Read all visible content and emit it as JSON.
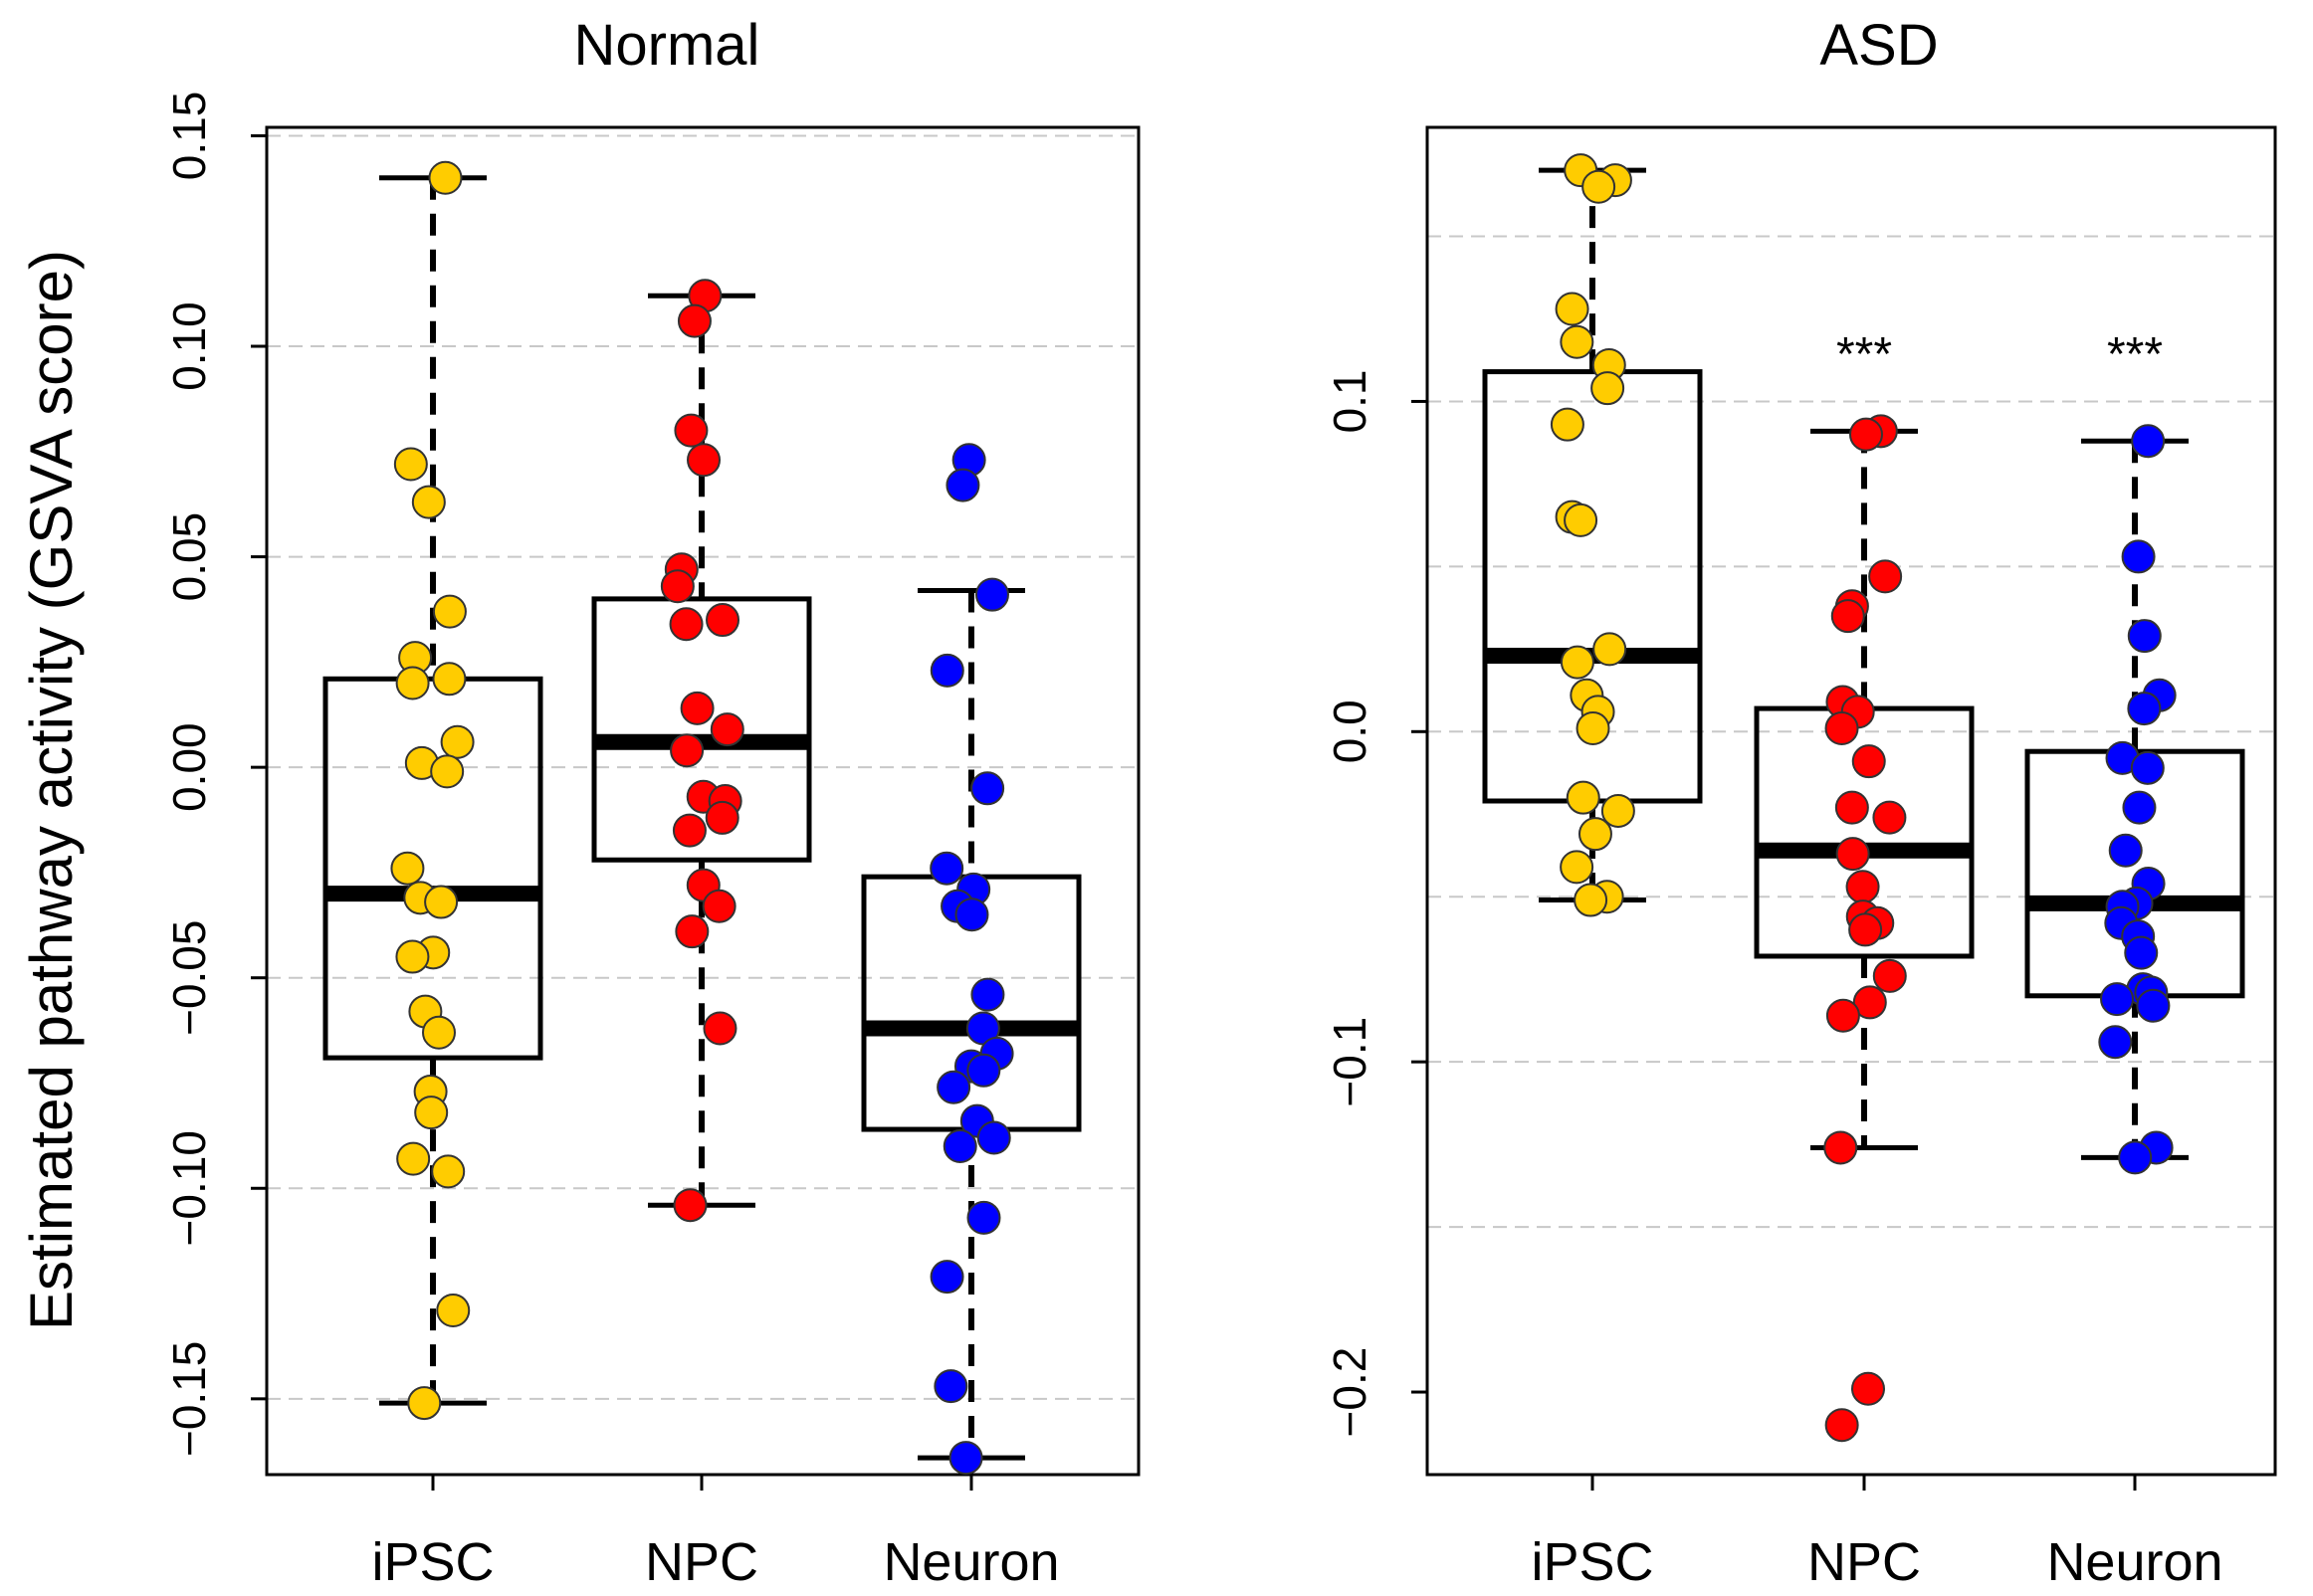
{
  "figure": {
    "ylabel": "Estimated pathway activity (GSVA score)"
  },
  "chart_data": [
    {
      "type": "boxplot",
      "title": "Normal",
      "xlabel": "",
      "ylabel": "Estimated pathway activity (GSVA score)",
      "ylim": [
        -0.168,
        0.152
      ],
      "yticks": [
        -0.15,
        -0.1,
        -0.05,
        0.0,
        0.05,
        0.1,
        0.15
      ],
      "ytick_labels": [
        "−0.15",
        "−0.10",
        "−0.05",
        "0.00",
        "0.05",
        "0.10",
        "0.15"
      ],
      "gridlines": [
        -0.15,
        -0.1,
        -0.05,
        0.0,
        0.05,
        0.1,
        0.15
      ],
      "categories": [
        "iPSC",
        "NPC",
        "Neuron"
      ],
      "colors": [
        "#FFCC00",
        "#FF0000",
        "#0000FF"
      ],
      "boxes": [
        {
          "whisker_low": -0.151,
          "q1": -0.069,
          "median": -0.03,
          "q3": 0.021,
          "whisker_high": 0.14
        },
        {
          "whisker_low": -0.104,
          "q1": -0.022,
          "median": 0.006,
          "q3": 0.04,
          "whisker_high": 0.112
        },
        {
          "whisker_low": -0.164,
          "q1": -0.086,
          "median": -0.062,
          "q3": -0.026,
          "whisker_high": 0.042
        }
      ],
      "points": [
        {
          "category": "iPSC",
          "values": [
            0.14,
            0.072,
            0.063,
            0.037,
            0.026,
            0.021,
            0.02,
            0.006,
            0.001,
            -0.001,
            -0.024,
            -0.031,
            -0.032,
            -0.044,
            -0.045,
            -0.058,
            -0.063,
            -0.077,
            -0.082,
            -0.093,
            -0.096,
            -0.129,
            -0.151
          ]
        },
        {
          "category": "NPC",
          "values": [
            0.112,
            0.106,
            0.08,
            0.073,
            0.047,
            0.043,
            0.035,
            0.034,
            0.014,
            0.009,
            0.004,
            -0.007,
            -0.008,
            -0.012,
            -0.015,
            -0.028,
            -0.033,
            -0.039,
            -0.062,
            -0.104
          ]
        },
        {
          "category": "Neuron",
          "values": [
            0.073,
            0.067,
            0.041,
            0.023,
            -0.005,
            -0.024,
            -0.029,
            -0.033,
            -0.035,
            -0.054,
            -0.062,
            -0.068,
            -0.071,
            -0.072,
            -0.076,
            -0.084,
            -0.088,
            -0.09,
            -0.107,
            -0.121,
            -0.147,
            -0.164
          ]
        }
      ],
      "significance": [
        "",
        "",
        ""
      ]
    },
    {
      "type": "boxplot",
      "title": "ASD",
      "xlabel": "",
      "ylabel": "",
      "ylim": [
        -0.225,
        0.183
      ],
      "yticks": [
        -0.2,
        -0.1,
        0.0,
        0.1
      ],
      "ytick_labels": [
        "−0.2",
        "−0.1",
        "0.0",
        "0.1"
      ],
      "gridlines": [
        -0.15,
        -0.1,
        -0.05,
        0.0,
        0.05,
        0.1,
        0.15
      ],
      "categories": [
        "iPSC",
        "NPC",
        "Neuron"
      ],
      "colors": [
        "#FFCC00",
        "#FF0000",
        "#0000FF"
      ],
      "boxes": [
        {
          "whisker_low": -0.051,
          "q1": -0.021,
          "median": 0.023,
          "q3": 0.109,
          "whisker_high": 0.17
        },
        {
          "whisker_low": -0.126,
          "q1": -0.068,
          "median": -0.036,
          "q3": 0.007,
          "whisker_high": 0.091
        },
        {
          "whisker_low": -0.129,
          "q1": -0.08,
          "median": -0.052,
          "q3": -0.006,
          "whisker_high": 0.088
        }
      ],
      "points": [
        {
          "category": "iPSC",
          "values": [
            0.17,
            0.167,
            0.165,
            0.128,
            0.118,
            0.111,
            0.104,
            0.093,
            0.065,
            0.064,
            0.025,
            0.021,
            0.011,
            0.006,
            0.001,
            -0.02,
            -0.024,
            -0.031,
            -0.041,
            -0.05,
            -0.051
          ]
        },
        {
          "category": "NPC",
          "values": [
            0.091,
            0.09,
            0.047,
            0.038,
            0.035,
            0.009,
            0.006,
            0.001,
            -0.009,
            -0.023,
            -0.026,
            -0.037,
            -0.047,
            -0.056,
            -0.058,
            -0.06,
            -0.074,
            -0.082,
            -0.086,
            -0.126,
            -0.199,
            -0.21
          ]
        },
        {
          "category": "Neuron",
          "values": [
            0.088,
            0.053,
            0.029,
            0.011,
            0.007,
            -0.008,
            -0.011,
            -0.023,
            -0.036,
            -0.046,
            -0.052,
            -0.053,
            -0.058,
            -0.062,
            -0.067,
            -0.078,
            -0.079,
            -0.081,
            -0.083,
            -0.094,
            -0.126,
            -0.129
          ]
        }
      ],
      "significance": [
        "",
        "***",
        "***"
      ]
    }
  ]
}
